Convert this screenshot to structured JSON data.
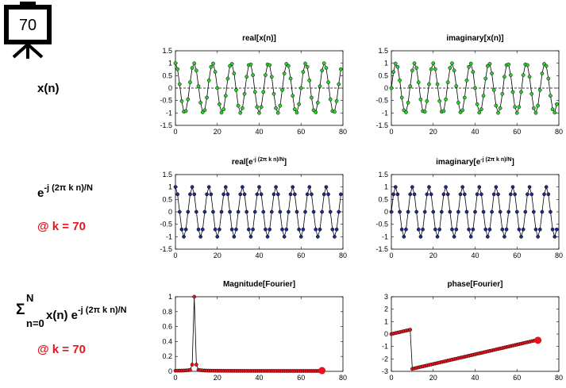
{
  "frame_number": "70",
  "labels": {
    "xn": "x(n)",
    "kernel_base": "e",
    "kernel_exp": "-j (2π k n)/N",
    "at_k_1": "@ k = 70",
    "sum_sym": "Σ",
    "sum_upper": "N",
    "sum_lower": "n=0",
    "sum_body": " x(n) e",
    "sum_exp": "-j (2π k n)/N",
    "at_k_2": "@ k = 70"
  },
  "colors": {
    "green_marker": "#2bd02b",
    "navy_marker": "#1e2a8c",
    "red_marker": "#e8131c",
    "highlight": "#e8131c",
    "line": "#000000"
  },
  "chart_data": [
    {
      "id": "real-xn",
      "type": "line",
      "title": "real[x(n)]",
      "xlim": [
        0,
        80
      ],
      "ylim": [
        -1.5,
        1.5
      ],
      "xticks": [
        0,
        20,
        40,
        60,
        80
      ],
      "xtick_labels": [
        "0",
        "20",
        "40",
        "60",
        "80"
      ],
      "yticks": [
        1.5,
        1,
        0.5,
        0,
        -0.5,
        -1,
        -1.5
      ],
      "ytick_labels": [
        "1.5",
        "1",
        "0.5",
        "0",
        "-0.5",
        "-1",
        "-1.5"
      ],
      "zero_line": true,
      "signal": {
        "kind": "cos",
        "cycles": 9,
        "samples": 80,
        "amplitude": 1
      },
      "marker_color": "green_marker"
    },
    {
      "id": "imag-xn",
      "type": "line",
      "title": "imaginary[x(n)]",
      "xlim": [
        0,
        80
      ],
      "ylim": [
        -1.5,
        1.5
      ],
      "xticks": [
        0,
        20,
        40,
        60,
        80
      ],
      "xtick_labels": [
        "0",
        "20",
        "40",
        "60",
        "80"
      ],
      "yticks": [
        1.5,
        1,
        0.5,
        0,
        -0.5,
        -1,
        -1.5
      ],
      "ytick_labels": [
        "1.5",
        "1",
        "0.5",
        "0",
        "-0.5",
        "-1",
        "-1.5"
      ],
      "zero_line": true,
      "signal": {
        "kind": "sin",
        "cycles": 9,
        "samples": 80,
        "amplitude": 1
      },
      "marker_color": "green_marker"
    },
    {
      "id": "real-kernel",
      "type": "line",
      "title_base": "real[e",
      "title_sup": "-j (2π k n)/N",
      "title_end": "]",
      "xlim": [
        0,
        80
      ],
      "ylim": [
        -1.5,
        1.5
      ],
      "xticks": [
        0,
        20,
        40,
        60,
        80
      ],
      "xtick_labels": [
        "0",
        "20",
        "40",
        "60",
        "80"
      ],
      "yticks": [
        1.5,
        1,
        0.5,
        0,
        -0.5,
        -1,
        -1.5
      ],
      "ytick_labels": [
        "1.5",
        "1",
        "0.5",
        "0",
        "-0.5",
        "-1",
        "-1.5"
      ],
      "signal": {
        "kind": "cos",
        "cycles": 10,
        "samples": 80,
        "amplitude": 1
      },
      "marker_color": "navy_marker"
    },
    {
      "id": "imag-kernel",
      "type": "line",
      "title_base": "imaginary[e",
      "title_sup": "-j (2π k n)/N",
      "title_end": "]",
      "xlim": [
        0,
        80
      ],
      "ylim": [
        -1.5,
        1.5
      ],
      "xticks": [
        0,
        20,
        40,
        60,
        80
      ],
      "xtick_labels": [
        "0",
        "20",
        "40",
        "60",
        "80"
      ],
      "yticks": [
        1.5,
        1,
        0.5,
        0,
        -0.5,
        -1,
        -1.5
      ],
      "ytick_labels": [
        "1.5",
        "1",
        "0.5",
        "0",
        "-0.5",
        "-1",
        "-1.5"
      ],
      "signal": {
        "kind": "sin",
        "cycles": 10,
        "samples": 80,
        "amplitude": 1
      },
      "marker_color": "navy_marker"
    },
    {
      "id": "magnitude",
      "type": "line",
      "title": "Magnitude[Fourier]",
      "xlim": [
        0,
        80
      ],
      "ylim": [
        0,
        1
      ],
      "xticks": [
        0,
        20,
        40,
        60,
        80
      ],
      "xtick_labels": [
        "0",
        "20",
        "40",
        "60",
        "80"
      ],
      "yticks": [
        1,
        0.8,
        0.6,
        0.4,
        0.2,
        0
      ],
      "ytick_labels": [
        "1",
        "0.8",
        "0.6",
        "0.4",
        "0.2",
        "0"
      ],
      "computed_points": 70,
      "highlight_x": 70,
      "highlight_y": 0.01,
      "series": {
        "kind": "magnitude",
        "peak_x": 9,
        "peak_y": 1
      },
      "marker_color": "red_marker"
    },
    {
      "id": "phase",
      "type": "line",
      "title": "phase[Fourier]",
      "xlim": [
        0,
        80
      ],
      "ylim": [
        -3,
        3
      ],
      "xticks": [
        0,
        20,
        40,
        60,
        80
      ],
      "xtick_labels": [
        "0",
        "20",
        "40",
        "60",
        "80"
      ],
      "yticks": [
        3,
        2,
        1,
        0,
        -1,
        -2,
        -3
      ],
      "ytick_labels": [
        "3",
        "2",
        "1",
        "0",
        "-1",
        "-2",
        "-3"
      ],
      "computed_points": 70,
      "highlight_x": 70,
      "highlight_y": -0.5,
      "series": {
        "kind": "phase",
        "start_y": 0,
        "jump_x": 9,
        "pre_jump_y": 0.35,
        "post_jump_y": -2.8,
        "end_y": -0.5
      },
      "marker_color": "red_marker"
    }
  ]
}
